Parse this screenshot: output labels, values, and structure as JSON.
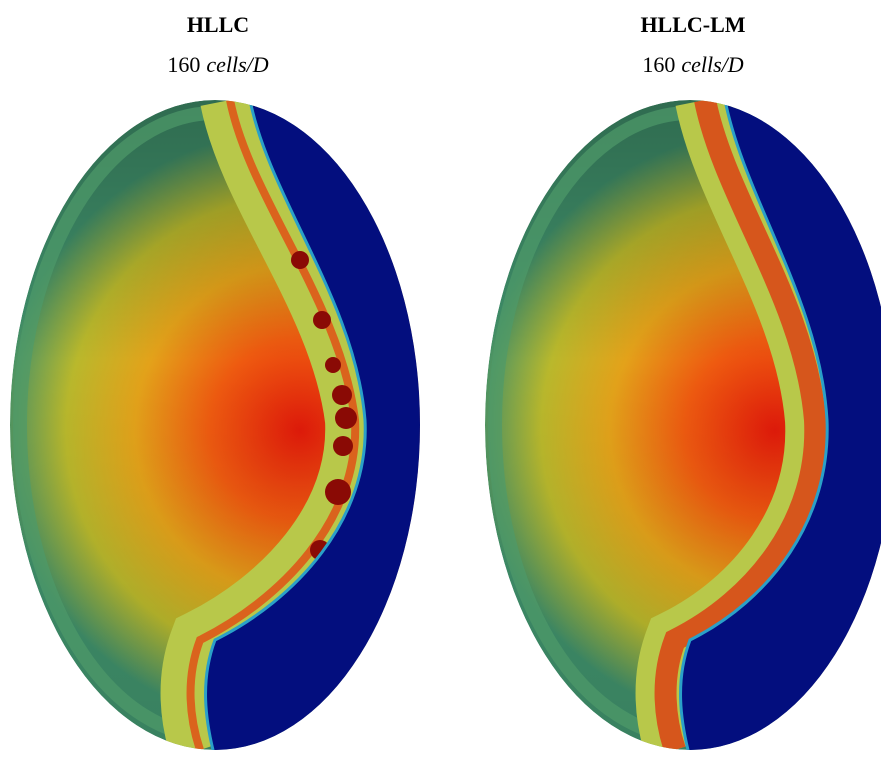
{
  "panels": [
    {
      "title": "HLLC",
      "subtitle": {
        "count": "160",
        "unit": "cells/D"
      }
    },
    {
      "title": "HLLC-LM",
      "subtitle": {
        "count": "160",
        "unit": "cells/D"
      }
    }
  ]
}
